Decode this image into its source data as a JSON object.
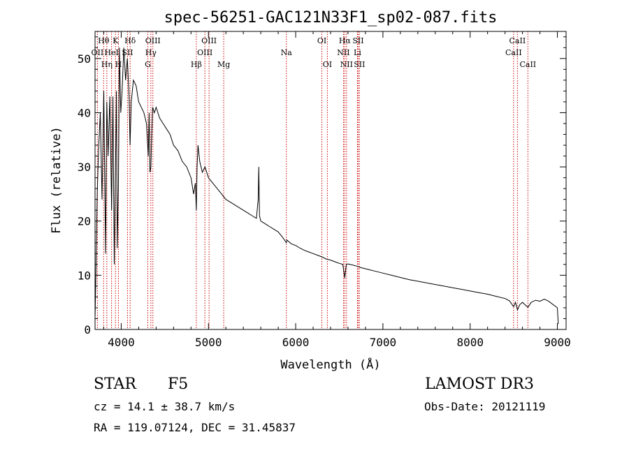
{
  "chart_data": {
    "type": "line",
    "title": "spec-56251-GAC121N33F1_sp02-087.fits",
    "xlabel": "Wavelength (Å)",
    "ylabel": "Flux (relative)",
    "xlim": [
      3700,
      9100
    ],
    "ylim": [
      0,
      55
    ],
    "xticks": [
      4000,
      5000,
      6000,
      7000,
      8000,
      9000
    ],
    "yticks": [
      0,
      10,
      20,
      30,
      40,
      50
    ],
    "grid": false,
    "series": [
      {
        "name": "flux",
        "x": [
          3700,
          3710,
          3725,
          3740,
          3760,
          3780,
          3800,
          3820,
          3835,
          3850,
          3870,
          3890,
          3905,
          3920,
          3933,
          3945,
          3955,
          3968,
          3980,
          3995,
          4010,
          4030,
          4050,
          4070,
          4090,
          4101,
          4115,
          4140,
          4170,
          4200,
          4230,
          4260,
          4290,
          4310,
          4320,
          4330,
          4340,
          4350,
          4360,
          4380,
          4400,
          4440,
          4480,
          4520,
          4560,
          4600,
          4650,
          4700,
          4750,
          4800,
          4830,
          4850,
          4861,
          4870,
          4880,
          4900,
          4930,
          4960,
          5000,
          5050,
          5100,
          5150,
          5200,
          5250,
          5300,
          5350,
          5400,
          5450,
          5500,
          5550,
          5570,
          5577,
          5585,
          5600,
          5650,
          5700,
          5750,
          5800,
          5850,
          5893,
          5900,
          5950,
          6000,
          6050,
          6100,
          6150,
          6200,
          6250,
          6300,
          6350,
          6400,
          6450,
          6500,
          6540,
          6563,
          6580,
          6600,
          6650,
          6700,
          6750,
          6800,
          6850,
          6900,
          7000,
          7100,
          7200,
          7300,
          7400,
          7500,
          7600,
          7700,
          7800,
          7900,
          8000,
          8100,
          8200,
          8300,
          8400,
          8450,
          8498,
          8520,
          8542,
          8570,
          8600,
          8662,
          8700,
          8750,
          8800,
          8850,
          8900,
          8950,
          9000,
          9010
        ],
        "values": [
          2,
          10,
          25,
          33,
          40,
          24,
          44,
          14,
          42,
          32,
          43,
          22,
          43,
          12,
          28,
          44,
          15,
          27,
          52,
          40,
          44,
          52,
          46,
          50,
          43,
          34,
          42,
          46,
          45,
          42,
          41,
          40,
          38,
          32,
          40,
          29,
          30,
          36,
          41,
          40,
          41,
          39,
          38,
          37,
          36,
          34,
          33,
          31,
          30,
          28,
          25,
          27,
          22,
          30,
          34,
          31,
          29,
          30,
          28,
          27,
          26,
          25,
          24,
          23.5,
          23,
          22.5,
          22,
          21.5,
          21,
          20.5,
          24,
          30,
          21,
          20,
          19.5,
          19,
          18.5,
          18,
          17,
          16,
          16.5,
          15.8,
          15.5,
          15,
          14.6,
          14.3,
          14,
          13.7,
          13.4,
          13,
          12.8,
          12.5,
          12.2,
          12,
          9.5,
          12,
          12.1,
          11.9,
          11.7,
          11.4,
          11.2,
          11,
          10.8,
          10.4,
          10,
          9.6,
          9.2,
          8.9,
          8.6,
          8.3,
          8,
          7.7,
          7.4,
          7.1,
          6.8,
          6.5,
          6.1,
          5.7,
          5.3,
          4.2,
          5,
          3.6,
          4.6,
          5,
          4.1,
          5,
          5.4,
          5.2,
          5.6,
          5.2,
          4.6,
          4,
          1
        ]
      }
    ],
    "lines": [
      {
        "name": "Hθ",
        "wavelength": 3798,
        "row": 1
      },
      {
        "name": "OII",
        "wavelength": 3727,
        "row": 2
      },
      {
        "name": "Hη",
        "wavelength": 3835,
        "row": 3
      },
      {
        "name": "K",
        "wavelength": 3934,
        "row": 1
      },
      {
        "name": "HeI",
        "wavelength": 3889,
        "row": 2
      },
      {
        "name": "H",
        "wavelength": 3968,
        "row": 3
      },
      {
        "name": "Hδ",
        "wavelength": 4102,
        "row": 1
      },
      {
        "name": "SII",
        "wavelength": 4072,
        "row": 2
      },
      {
        "name": "OIII",
        "wavelength": 4363,
        "row": 1
      },
      {
        "name": "Hγ",
        "wavelength": 4340,
        "row": 2
      },
      {
        "name": "G",
        "wavelength": 4305,
        "row": 3
      },
      {
        "name": "OIII",
        "wavelength": 5007,
        "row": 1
      },
      {
        "name": "OIII",
        "wavelength": 4959,
        "row": 2
      },
      {
        "name": "Hβ",
        "wavelength": 4861,
        "row": 3
      },
      {
        "name": "Mg",
        "wavelength": 5175,
        "row": 3
      },
      {
        "name": "Na",
        "wavelength": 5893,
        "row": 2
      },
      {
        "name": "OI",
        "wavelength": 6300,
        "row": 1
      },
      {
        "name": "OI",
        "wavelength": 6363,
        "row": 3
      },
      {
        "name": "Hα",
        "wavelength": 6563,
        "row": 1
      },
      {
        "name": "NII",
        "wavelength": 6548,
        "row": 2
      },
      {
        "name": "NII",
        "wavelength": 6583,
        "row": 3
      },
      {
        "name": "SII",
        "wavelength": 6716,
        "row": 1
      },
      {
        "name": "Li",
        "wavelength": 6708,
        "row": 2
      },
      {
        "name": "SII",
        "wavelength": 6731,
        "row": 3
      },
      {
        "name": "CaII",
        "wavelength": 8542,
        "row": 1
      },
      {
        "name": "CaII",
        "wavelength": 8498,
        "row": 2
      },
      {
        "name": "CaII",
        "wavelength": 8662,
        "row": 3
      }
    ]
  },
  "info": {
    "class": "STAR",
    "subclass": "F5",
    "survey": "LAMOST DR3",
    "redshift": "cz = 14.1 ± 38.7 km/s",
    "obs_date": "Obs-Date: 20121119",
    "coords": "RA = 119.07124, DEC =  31.45837"
  },
  "colors": {
    "line_marker": "#cc0000",
    "spectrum": "#000000",
    "axes": "#000000"
  }
}
